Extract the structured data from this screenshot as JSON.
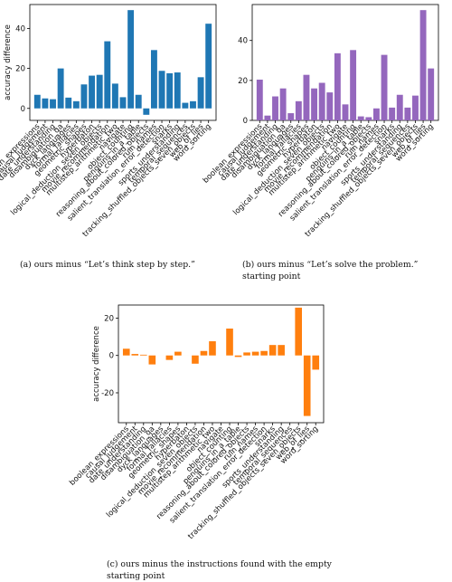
{
  "chart_data": [
    {
      "type": "bar",
      "color": "#1f77b4",
      "ylabel": "accuracy difference",
      "yticks": [
        0,
        20,
        40
      ],
      "ylim": [
        -6,
        52
      ],
      "categories": [
        "boolean_expressions",
        "causal_judgement",
        "date_understanding",
        "disambiguation_qa",
        "dyck_languages",
        "formal_fallacies",
        "geometric_shapes",
        "hyperbaton",
        "logical_deduction_seven_objects",
        "movie_recommendation",
        "multistep_arithmetic_two",
        "navigate",
        "object_counting",
        "penguins_in_a_table",
        "reasoning_about_colored_objects",
        "ruin_names",
        "salient_translation_error_detection",
        "snarks",
        "sports_understanding",
        "temporal_sequences",
        "tracking_shuffled_objects_seven_objects",
        "web_of_lies",
        "word_sorting"
      ],
      "values": [
        6.8,
        5.0,
        4.6,
        20.0,
        5.4,
        3.6,
        12.0,
        16.4,
        16.8,
        33.6,
        12.4,
        5.6,
        49.2,
        6.8,
        -3.2,
        29.2,
        18.8,
        17.6,
        18.0,
        2.8,
        3.6,
        15.6,
        42.4
      ],
      "caption": "(a) ours minus “Let’s think step by step.”"
    },
    {
      "type": "bar",
      "color": "#9467bd",
      "ylabel": "",
      "yticks": [
        0,
        20,
        40
      ],
      "ylim": [
        0,
        58
      ],
      "categories": [
        "boolean_expressions",
        "causal_judgement",
        "date_understanding",
        "disambiguation_qa",
        "dyck_languages",
        "formal_fallacies",
        "geometric_shapes",
        "hyperbaton",
        "logical_deduction_seven_objects",
        "movie_recommendation",
        "multistep_arithmetic_two",
        "navigate",
        "object_counting",
        "penguins_in_a_table",
        "reasoning_about_colored_objects",
        "ruin_names",
        "salient_translation_error_detection",
        "snarks",
        "sports_understanding",
        "temporal_sequences",
        "tracking_shuffled_objects_seven_objects",
        "web_of_lies",
        "word_sorting"
      ],
      "values": [
        20.4,
        2.4,
        12.0,
        16.0,
        3.6,
        9.6,
        22.8,
        16.0,
        18.8,
        14.0,
        33.6,
        8.0,
        35.2,
        2.0,
        1.6,
        6.0,
        32.8,
        6.4,
        12.8,
        6.4,
        12.4,
        55.2,
        26.0
      ],
      "caption": "(b) ours minus “Let’s solve the problem.” starting point"
    },
    {
      "type": "bar",
      "color": "#ff7f0e",
      "ylabel": "accuracy difference",
      "yticks": [
        -20,
        0,
        20
      ],
      "ylim": [
        -36,
        27
      ],
      "categories": [
        "boolean_expressions",
        "causal_judgement",
        "date_understanding",
        "disambiguation_qa",
        "dyck_languages",
        "formal_fallacies",
        "geometric_shapes",
        "hyperbaton",
        "logical_deduction_seven_objects",
        "movie_recommendation",
        "multistep_arithmetic_two",
        "navigate",
        "object_counting",
        "penguins_in_a_table",
        "reasoning_about_colored_objects",
        "ruin_names",
        "salient_translation_error_detection",
        "snarks",
        "sports_understanding",
        "temporal_sequences",
        "tracking_shuffled_objects_seven_objects",
        "web_of_lies",
        "word_sorting"
      ],
      "values": [
        3.6,
        0.8,
        0.4,
        -4.8,
        0.0,
        -2.4,
        2.0,
        0.0,
        -4.4,
        2.4,
        7.6,
        0.0,
        14.4,
        -0.8,
        1.6,
        2.0,
        2.4,
        5.6,
        5.6,
        0.0,
        25.6,
        -32.4,
        -7.6
      ],
      "caption": "(c) ours minus the instructions found with the empty starting point"
    }
  ]
}
